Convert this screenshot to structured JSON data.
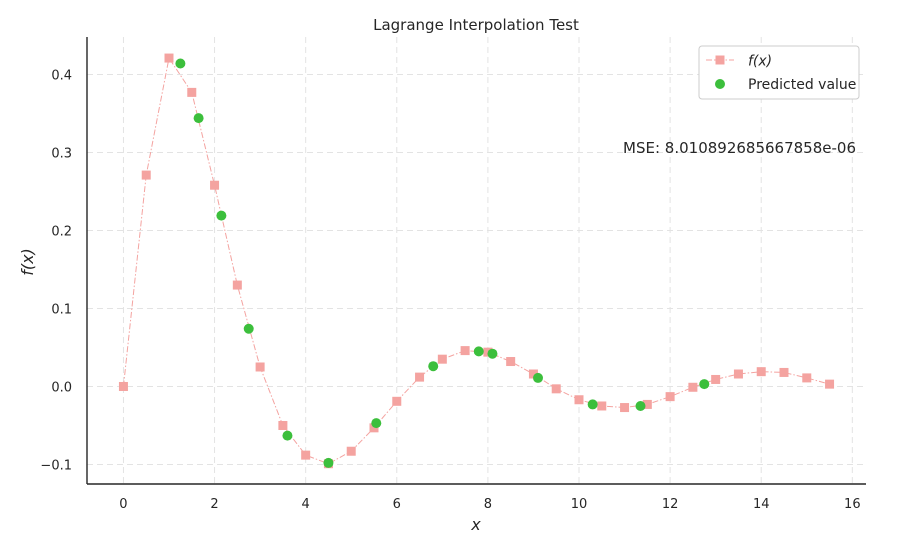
{
  "chart_data": {
    "type": "line",
    "title": "Lagrange Interpolation Test",
    "xlabel": "x",
    "ylabel": "f(x)",
    "xlim": [
      -0.8,
      16.3
    ],
    "ylim": [
      -0.125,
      0.448
    ],
    "x_ticks": [
      0,
      2,
      4,
      6,
      8,
      10,
      12,
      14,
      16
    ],
    "y_ticks": [
      -0.1,
      0.0,
      0.1,
      0.2,
      0.3,
      0.4
    ],
    "y_tick_labels": [
      "−0.1",
      "0.0",
      "0.1",
      "0.2",
      "0.3",
      "0.4"
    ],
    "grid": true,
    "legend_position": "top-right",
    "annotation": "MSE: 8.010892685667858e-06",
    "series": [
      {
        "name": "f(x)",
        "style": "dash-dot line with square markers",
        "color": "#f4a3a0",
        "x": [
          0,
          0.5,
          1.0,
          1.5,
          2.0,
          2.5,
          3.0,
          3.5,
          4.0,
          4.5,
          5.0,
          5.5,
          6.0,
          6.5,
          7.0,
          7.5,
          8.0,
          8.5,
          9.0,
          9.5,
          10.0,
          10.5,
          11.0,
          11.5,
          12.0,
          12.5,
          13.0,
          13.5,
          14.0,
          14.5,
          15.0,
          15.5
        ],
        "y": [
          0.0,
          0.271,
          0.421,
          0.377,
          0.258,
          0.13,
          0.025,
          -0.05,
          -0.088,
          -0.099,
          -0.083,
          -0.053,
          -0.019,
          0.012,
          0.035,
          0.046,
          0.044,
          0.032,
          0.016,
          -0.003,
          -0.017,
          -0.025,
          -0.027,
          -0.023,
          -0.013,
          -0.001,
          0.009,
          0.016,
          0.019,
          0.018,
          0.011,
          0.003
        ]
      },
      {
        "name": "Predicted value",
        "style": "scatter",
        "color": "#3cbf3c",
        "x": [
          1.25,
          1.65,
          2.15,
          2.75,
          3.6,
          4.5,
          5.55,
          6.8,
          7.8,
          8.1,
          9.1,
          10.3,
          11.35,
          12.75
        ],
        "y": [
          0.414,
          0.344,
          0.219,
          0.074,
          -0.063,
          -0.098,
          -0.047,
          0.026,
          0.045,
          0.042,
          0.011,
          -0.023,
          -0.025,
          0.003
        ]
      }
    ]
  }
}
